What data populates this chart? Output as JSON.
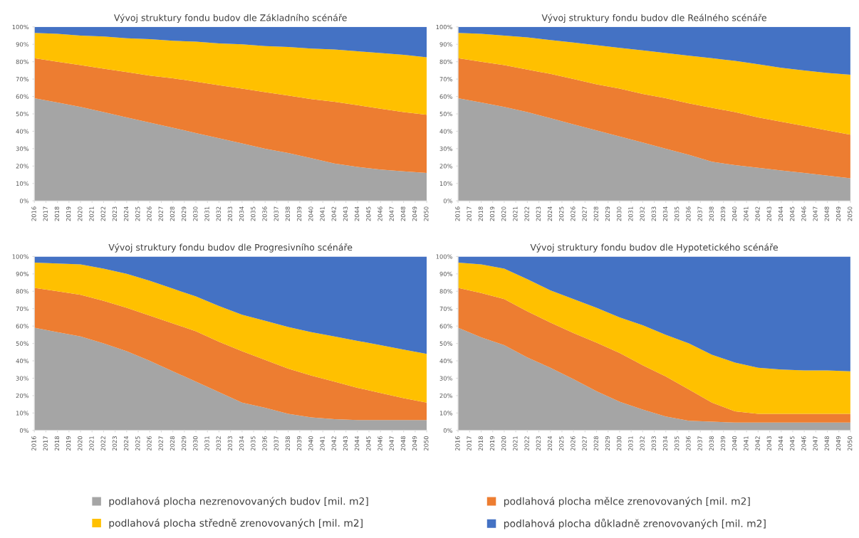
{
  "chart_data": [
    {
      "type": "area",
      "stacked": true,
      "title": "Vývoj struktury fondu budov dle Základního scénáře",
      "x": [
        2016,
        2018,
        2020,
        2022,
        2024,
        2026,
        2028,
        2030,
        2032,
        2034,
        2036,
        2038,
        2040,
        2042,
        2044,
        2046,
        2048,
        2050
      ],
      "xlim": [
        2016,
        2050
      ],
      "xticks": [
        2016,
        2017,
        2018,
        2019,
        2020,
        2021,
        2022,
        2023,
        2024,
        2025,
        2026,
        2027,
        2028,
        2029,
        2030,
        2031,
        2032,
        2033,
        2034,
        2035,
        2036,
        2037,
        2038,
        2039,
        2040,
        2041,
        2042,
        2043,
        2044,
        2045,
        2046,
        2047,
        2048,
        2049,
        2050
      ],
      "ylim": [
        0,
        100
      ],
      "yticks": [
        {
          "value": 0,
          "label": "0%"
        },
        {
          "value": 10,
          "label": "10%"
        },
        {
          "value": 20,
          "label": "20%"
        },
        {
          "value": 30,
          "label": "30%"
        },
        {
          "value": 40,
          "label": "40%"
        },
        {
          "value": 50,
          "label": "50%"
        },
        {
          "value": 60,
          "label": "60%"
        },
        {
          "value": 70,
          "label": "70%"
        },
        {
          "value": 80,
          "label": "80%"
        },
        {
          "value": 90,
          "label": "90%"
        },
        {
          "value": 100,
          "label": "100%"
        }
      ],
      "legend": "bottom",
      "series": [
        {
          "name": "podlahová plocha nezrenovovaných budov [mil. m2]",
          "color": "#a5a5a5",
          "values": [
            59,
            56.5,
            54,
            51,
            48,
            45,
            42,
            39,
            36,
            33,
            30,
            27.5,
            24.5,
            21.5,
            19.5,
            18,
            17,
            16
          ]
        },
        {
          "name": "podlahová plocha mělce zrenovovaných [mil. m2]",
          "color": "#ed7d31",
          "values": [
            23,
            23.5,
            24,
            25,
            26,
            27,
            28.5,
            29.5,
            30.5,
            31.5,
            32.5,
            33,
            34,
            35.5,
            35.5,
            35,
            34,
            33.5
          ]
        },
        {
          "name": "podlahová plocha středně zrenovovaných [mil. m2]",
          "color": "#ffc000",
          "values": [
            14.5,
            16,
            17,
            18.5,
            19.5,
            21,
            21.5,
            23,
            24,
            25.5,
            26.5,
            28,
            29,
            30,
            31,
            32,
            33,
            33
          ]
        },
        {
          "name": "podlahová plocha důkladně zrenovovaných [mil. m2]",
          "color": "#4472c4",
          "values": [
            3.5,
            4,
            5,
            5.5,
            6.5,
            7,
            8,
            8.5,
            9.5,
            10,
            11,
            11.5,
            12.5,
            13,
            14,
            15,
            16,
            17.5
          ]
        }
      ]
    },
    {
      "type": "area",
      "stacked": true,
      "title": "Vývoj struktury fondu budov dle Reálného scénáře",
      "x": [
        2016,
        2018,
        2020,
        2022,
        2024,
        2026,
        2028,
        2030,
        2032,
        2034,
        2036,
        2038,
        2040,
        2042,
        2044,
        2046,
        2048,
        2050
      ],
      "xlim": [
        2016,
        2050
      ],
      "xticks": [
        2016,
        2017,
        2018,
        2019,
        2020,
        2021,
        2022,
        2023,
        2024,
        2025,
        2026,
        2027,
        2028,
        2029,
        2030,
        2031,
        2032,
        2033,
        2034,
        2035,
        2036,
        2037,
        2038,
        2039,
        2040,
        2041,
        2042,
        2043,
        2044,
        2045,
        2046,
        2047,
        2048,
        2049,
        2050
      ],
      "ylim": [
        0,
        100
      ],
      "yticks": [
        {
          "value": 0,
          "label": "0%"
        },
        {
          "value": 10,
          "label": "10%"
        },
        {
          "value": 20,
          "label": "20%"
        },
        {
          "value": 30,
          "label": "30%"
        },
        {
          "value": 40,
          "label": "40%"
        },
        {
          "value": 50,
          "label": "50%"
        },
        {
          "value": 60,
          "label": "60%"
        },
        {
          "value": 70,
          "label": "70%"
        },
        {
          "value": 80,
          "label": "80%"
        },
        {
          "value": 90,
          "label": "90%"
        },
        {
          "value": 100,
          "label": "100%"
        }
      ],
      "series": [
        {
          "color": "#a5a5a5",
          "values": [
            59,
            56.5,
            54,
            51,
            47.5,
            44,
            40.5,
            37,
            33.5,
            30,
            26.5,
            22.5,
            20.5,
            19,
            17.5,
            16,
            14.5,
            13
          ]
        },
        {
          "color": "#ed7d31",
          "values": [
            23,
            23.5,
            24,
            24.5,
            25.5,
            26,
            26.5,
            27.5,
            28,
            29,
            29.5,
            31,
            30.5,
            29,
            28,
            27,
            26,
            25
          ]
        },
        {
          "color": "#ffc000",
          "values": [
            14.5,
            16,
            17,
            18.5,
            19.5,
            21,
            22.5,
            23.5,
            25,
            26,
            27.5,
            28.5,
            29.5,
            30.5,
            31,
            32,
            33,
            34.5
          ]
        },
        {
          "color": "#4472c4",
          "values": [
            3.5,
            4,
            5,
            6,
            7.5,
            9,
            10.5,
            12,
            13.5,
            15,
            16.5,
            18,
            19.5,
            21.5,
            23.5,
            25,
            26.5,
            27.5
          ]
        }
      ]
    },
    {
      "type": "area",
      "stacked": true,
      "title": "Vývoj struktury fondu budov dle Progresivního scénáře",
      "x": [
        2016,
        2018,
        2020,
        2022,
        2024,
        2026,
        2028,
        2030,
        2032,
        2034,
        2036,
        2038,
        2040,
        2042,
        2044,
        2046,
        2048,
        2050
      ],
      "xlim": [
        2016,
        2050
      ],
      "xticks": [
        2016,
        2017,
        2018,
        2019,
        2020,
        2021,
        2022,
        2023,
        2024,
        2025,
        2026,
        2027,
        2028,
        2029,
        2030,
        2031,
        2032,
        2033,
        2034,
        2035,
        2036,
        2037,
        2038,
        2039,
        2040,
        2041,
        2042,
        2043,
        2044,
        2045,
        2046,
        2047,
        2048,
        2049,
        2050
      ],
      "ylim": [
        0,
        100
      ],
      "yticks": [
        {
          "value": 0,
          "label": "0%"
        },
        {
          "value": 10,
          "label": "10%"
        },
        {
          "value": 20,
          "label": "20%"
        },
        {
          "value": 30,
          "label": "30%"
        },
        {
          "value": 40,
          "label": "40%"
        },
        {
          "value": 50,
          "label": "50%"
        },
        {
          "value": 60,
          "label": "60%"
        },
        {
          "value": 70,
          "label": "70%"
        },
        {
          "value": 80,
          "label": "80%"
        },
        {
          "value": 90,
          "label": "90%"
        },
        {
          "value": 100,
          "label": "100%"
        }
      ],
      "series": [
        {
          "color": "#a5a5a5",
          "values": [
            59,
            56.5,
            54,
            50,
            45.5,
            40,
            34,
            28,
            22,
            16,
            13,
            9.5,
            7.5,
            6.5,
            6,
            6,
            6,
            6
          ]
        },
        {
          "color": "#ed7d31",
          "values": [
            23,
            23.5,
            24,
            24.5,
            25,
            26,
            27.5,
            29,
            29,
            29.5,
            27.5,
            26,
            24,
            21.5,
            18.5,
            15.5,
            12.5,
            10
          ]
        },
        {
          "color": "#ffc000",
          "values": [
            14.5,
            16,
            17.5,
            18.5,
            19.5,
            20,
            20,
            20,
            20.5,
            21,
            22.5,
            24,
            25,
            26,
            27,
            27.5,
            28,
            28
          ]
        },
        {
          "color": "#4472c4",
          "values": [
            3.5,
            4,
            4.5,
            7,
            10,
            14,
            18.5,
            23,
            28.5,
            33.5,
            37,
            40.5,
            43.5,
            46,
            48.5,
            51,
            53.5,
            56
          ]
        }
      ]
    },
    {
      "type": "area",
      "stacked": true,
      "title": "Vývoj struktury fondu budov dle Hypotetického scénáře",
      "x": [
        2016,
        2018,
        2020,
        2022,
        2024,
        2026,
        2028,
        2030,
        2032,
        2034,
        2036,
        2038,
        2040,
        2042,
        2044,
        2046,
        2048,
        2050
      ],
      "xlim": [
        2016,
        2050
      ],
      "xticks": [
        2016,
        2017,
        2018,
        2019,
        2020,
        2021,
        2022,
        2023,
        2024,
        2025,
        2026,
        2027,
        2028,
        2029,
        2030,
        2031,
        2032,
        2033,
        2034,
        2035,
        2036,
        2037,
        2038,
        2039,
        2040,
        2041,
        2042,
        2043,
        2044,
        2045,
        2046,
        2047,
        2048,
        2049,
        2050
      ],
      "ylim": [
        0,
        100
      ],
      "yticks": [
        {
          "value": 0,
          "label": "0%"
        },
        {
          "value": 10,
          "label": "10%"
        },
        {
          "value": 20,
          "label": "20%"
        },
        {
          "value": 30,
          "label": "30%"
        },
        {
          "value": 40,
          "label": "40%"
        },
        {
          "value": 50,
          "label": "50%"
        },
        {
          "value": 60,
          "label": "60%"
        },
        {
          "value": 70,
          "label": "70%"
        },
        {
          "value": 80,
          "label": "80%"
        },
        {
          "value": 90,
          "label": "90%"
        },
        {
          "value": 100,
          "label": "100%"
        }
      ],
      "series": [
        {
          "color": "#a5a5a5",
          "values": [
            59,
            53.5,
            49,
            42,
            36,
            29.5,
            22.5,
            16.5,
            12,
            8,
            5.5,
            5,
            4.5,
            4.5,
            4.5,
            4.5,
            4.5,
            4.5
          ]
        },
        {
          "color": "#ed7d31",
          "values": [
            23,
            25.5,
            26.5,
            26.5,
            26,
            26.5,
            28,
            28,
            25.5,
            23,
            18,
            11,
            6.5,
            5,
            5,
            5,
            5,
            5
          ]
        },
        {
          "color": "#ffc000",
          "values": [
            14.5,
            16.5,
            17.5,
            18.5,
            18.5,
            19.5,
            20,
            20.5,
            23,
            24,
            26.5,
            27.5,
            28,
            26.5,
            25.5,
            25,
            25,
            24.5
          ]
        },
        {
          "color": "#4472c4",
          "values": [
            3.5,
            4.5,
            7,
            13,
            19.5,
            24.5,
            29.5,
            35,
            39.5,
            45,
            50,
            56.5,
            61,
            64,
            65,
            65.5,
            65.5,
            66
          ]
        }
      ]
    }
  ]
}
